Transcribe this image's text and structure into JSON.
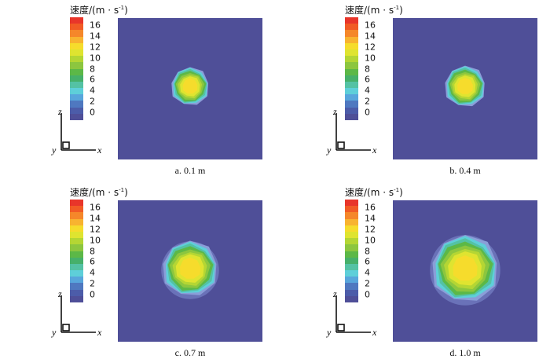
{
  "colorbar": {
    "title": "速度/(m · s",
    "title_sup": "-1",
    "title_close": ")",
    "ticks": [
      "16",
      "14",
      "12",
      "10",
      "8",
      "6",
      "4",
      "2",
      "0"
    ],
    "colors": [
      "#e8352a",
      "#f15b25",
      "#f5872a",
      "#f8b330",
      "#f6dc2c",
      "#dfe430",
      "#b4d634",
      "#8cc63f",
      "#5cb847",
      "#46b06a",
      "#54c2a4",
      "#5ecfd9",
      "#58a6dc",
      "#4f78c0",
      "#4c5ca9",
      "#4f4f98"
    ]
  },
  "axes": {
    "z": "z",
    "y": "y",
    "x": "x"
  },
  "panels": [
    {
      "caption": "a.  0.1 m",
      "jet_diameter_fraction": 0.25
    },
    {
      "caption": "b.  0.4 m",
      "jet_diameter_fraction": 0.27
    },
    {
      "caption": "c.  0.7 m",
      "jet_diameter_fraction": 0.37
    },
    {
      "caption": "d.  1.0 m",
      "jet_diameter_fraction": 0.45
    }
  ],
  "field_colors": {
    "background": "#4f4f98",
    "rings": [
      "#8a9ed8",
      "#5ecfd9",
      "#54c2a4",
      "#5cb847",
      "#8cc63f",
      "#b4d634",
      "#dfe430",
      "#f6dc2c"
    ]
  }
}
